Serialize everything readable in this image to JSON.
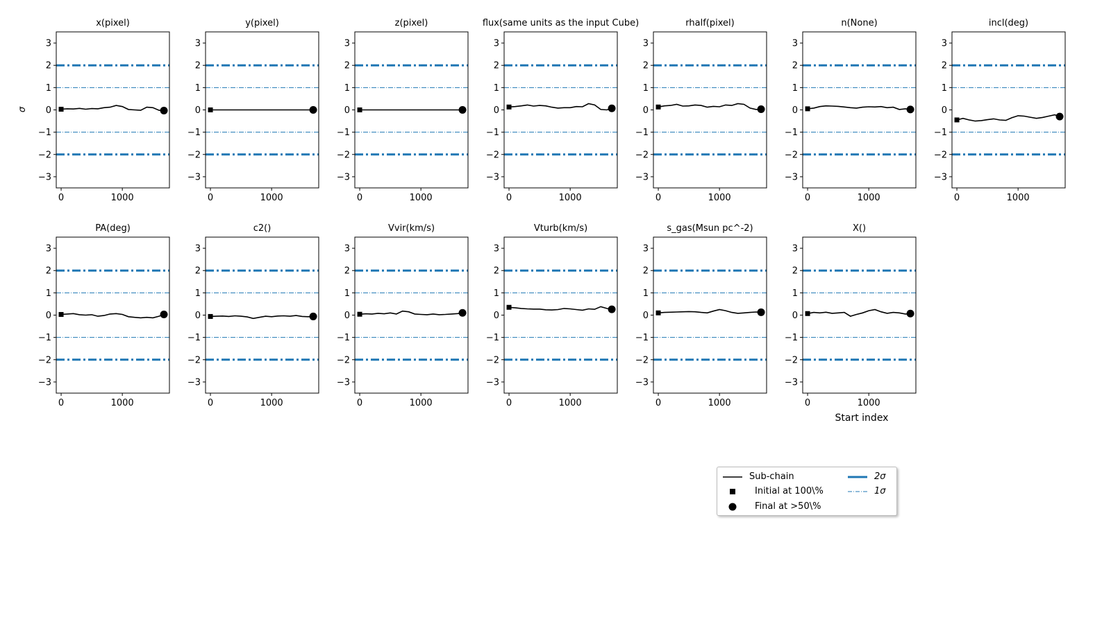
{
  "figure": {
    "y_axis_label": "σ",
    "x_axis_label": "Start index",
    "legend": {
      "subchain": "Sub-chain",
      "initial": "Initial at 100\\%",
      "final": "Final at  >50\\%",
      "two_sigma": "2σ",
      "one_sigma": "1σ"
    }
  },
  "chart_data": {
    "type": "line",
    "layout": "grid 2 rows x 7 columns",
    "shared_axes": {
      "x_ticks": [
        0,
        1000
      ],
      "x_range": [
        -80,
        1770
      ],
      "y_ticks": [
        -3,
        -2,
        -1,
        0,
        1,
        2,
        3
      ],
      "ylim": [
        -3.5,
        3.5
      ],
      "grid": false
    },
    "reference_lines": [
      {
        "name": "2σ",
        "y": [
          2,
          -2
        ],
        "style": "thick dash-dot",
        "color": "#1f77b4"
      },
      {
        "name": "1σ",
        "y": [
          1,
          -1
        ],
        "style": "thin dash-dot",
        "color": "#1f77b4"
      }
    ],
    "x": [
      0,
      100,
      200,
      300,
      400,
      500,
      600,
      700,
      800,
      900,
      1000,
      1100,
      1200,
      1300,
      1400,
      1500,
      1600,
      1680
    ],
    "panels": [
      {
        "title": "x(pixel)",
        "values": [
          0.03,
          0.05,
          0.04,
          0.07,
          0.03,
          0.06,
          0.05,
          0.1,
          0.12,
          0.2,
          0.15,
          0.02,
          0.0,
          -0.02,
          0.12,
          0.1,
          -0.02,
          -0.03
        ]
      },
      {
        "title": "y(pixel)",
        "values": [
          0.0,
          0.0,
          0.0,
          0.0,
          0.0,
          0.0,
          0.0,
          0.0,
          0.0,
          0.0,
          0.0,
          0.0,
          0.0,
          0.0,
          0.0,
          0.0,
          0.0,
          0.0
        ]
      },
      {
        "title": "z(pixel)",
        "values": [
          0.0,
          0.0,
          0.0,
          0.0,
          0.0,
          0.0,
          0.0,
          0.0,
          0.0,
          0.0,
          0.0,
          0.0,
          0.0,
          0.0,
          0.0,
          0.0,
          0.0,
          0.0
        ]
      },
      {
        "title": "flux(same units as the input Cube)",
        "values": [
          0.13,
          0.15,
          0.18,
          0.22,
          0.17,
          0.2,
          0.18,
          0.12,
          0.08,
          0.1,
          0.1,
          0.15,
          0.14,
          0.28,
          0.22,
          0.02,
          0.0,
          0.07
        ]
      },
      {
        "title": "rhalf(pixel)",
        "values": [
          0.13,
          0.18,
          0.2,
          0.25,
          0.17,
          0.18,
          0.22,
          0.2,
          0.12,
          0.16,
          0.14,
          0.22,
          0.2,
          0.28,
          0.25,
          0.08,
          0.02,
          0.03
        ]
      },
      {
        "title": "n(None)",
        "values": [
          0.05,
          0.08,
          0.15,
          0.18,
          0.17,
          0.16,
          0.13,
          0.1,
          0.08,
          0.12,
          0.14,
          0.13,
          0.15,
          0.1,
          0.12,
          0.02,
          0.05,
          0.02
        ]
      },
      {
        "title": "incl(deg)",
        "values": [
          -0.45,
          -0.38,
          -0.45,
          -0.5,
          -0.48,
          -0.44,
          -0.4,
          -0.45,
          -0.47,
          -0.35,
          -0.26,
          -0.28,
          -0.33,
          -0.38,
          -0.34,
          -0.28,
          -0.22,
          -0.3
        ]
      },
      {
        "title": "PA(deg)",
        "values": [
          0.03,
          0.05,
          0.07,
          0.02,
          0.0,
          0.02,
          -0.05,
          -0.02,
          0.05,
          0.07,
          0.03,
          -0.07,
          -0.1,
          -0.12,
          -0.1,
          -0.12,
          -0.05,
          0.03
        ]
      },
      {
        "title": "c2()",
        "values": [
          -0.06,
          -0.05,
          -0.04,
          -0.06,
          -0.03,
          -0.05,
          -0.08,
          -0.15,
          -0.1,
          -0.05,
          -0.07,
          -0.04,
          -0.03,
          -0.05,
          -0.02,
          -0.06,
          -0.07,
          -0.06
        ]
      },
      {
        "title": "Vvir(km/s)",
        "values": [
          0.04,
          0.06,
          0.05,
          0.08,
          0.06,
          0.1,
          0.05,
          0.18,
          0.15,
          0.05,
          0.03,
          0.02,
          0.05,
          0.02,
          0.03,
          0.05,
          0.07,
          0.1
        ]
      },
      {
        "title": "Vturb(km/s)",
        "values": [
          0.35,
          0.33,
          0.3,
          0.28,
          0.27,
          0.27,
          0.24,
          0.23,
          0.25,
          0.3,
          0.28,
          0.25,
          0.22,
          0.28,
          0.26,
          0.38,
          0.3,
          0.26
        ]
      },
      {
        "title": "s_gas(Msun pc^-2)",
        "values": [
          0.1,
          0.12,
          0.13,
          0.14,
          0.15,
          0.16,
          0.15,
          0.12,
          0.1,
          0.18,
          0.25,
          0.2,
          0.12,
          0.08,
          0.1,
          0.12,
          0.14,
          0.13
        ]
      },
      {
        "title": "X()",
        "values": [
          0.07,
          0.12,
          0.1,
          0.13,
          0.08,
          0.1,
          0.12,
          -0.05,
          0.03,
          0.1,
          0.2,
          0.25,
          0.15,
          0.08,
          0.12,
          0.1,
          0.05,
          0.07
        ]
      }
    ]
  }
}
